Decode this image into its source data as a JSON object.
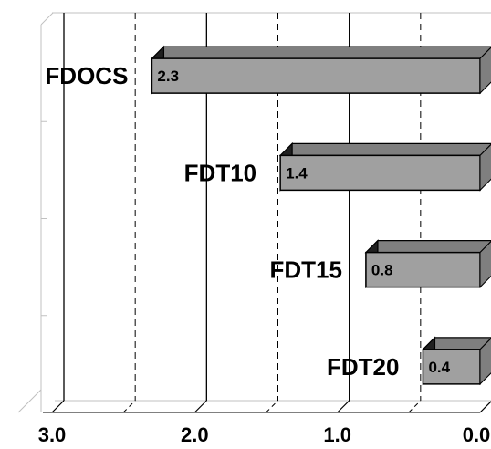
{
  "chart_data": {
    "type": "bar",
    "orientation": "horizontal",
    "x_axis_reversed": true,
    "three_d": true,
    "categories": [
      "FDOCS",
      "FDT10",
      "FDT15",
      "FDT20"
    ],
    "values": [
      2.3,
      1.4,
      0.8,
      0.4
    ],
    "value_labels": [
      "2.3",
      "1.4",
      "0.8",
      "0.4"
    ],
    "xlim": [
      0,
      3
    ],
    "x_ticks": [
      "3.0",
      "2.0",
      "1.0",
      "0.0"
    ],
    "x_tick_values": [
      3,
      2,
      1,
      0
    ],
    "minor_tick_values": [
      2.5,
      1.5,
      0.5
    ],
    "grid": true,
    "title": "",
    "xlabel": "",
    "ylabel": "",
    "colors": {
      "bar_front": "#a0a0a0",
      "bar_top": "#7f7f7f",
      "bar_side": "#202020",
      "grid": "#000000",
      "frame": "#c0c0c0"
    }
  }
}
